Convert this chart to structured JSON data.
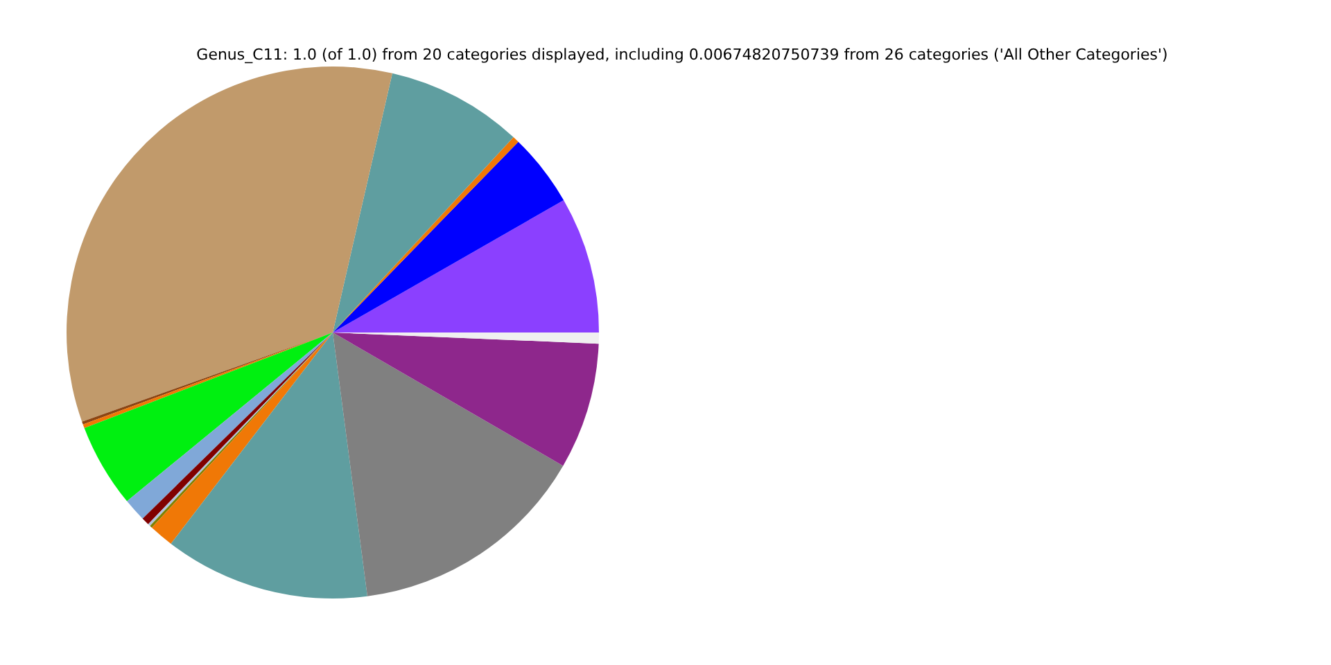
{
  "chart_data": {
    "type": "pie",
    "title": "Genus_C11: 1.0 (of 1.0) from 20 categories displayed, including 0.00674820750739 from 26 categories ('All Other Categories')",
    "categories": [
      null,
      null,
      null,
      null,
      null,
      null,
      null,
      null,
      null,
      null,
      null,
      null,
      null,
      null,
      null,
      null,
      null
    ],
    "values": [
      8.3,
      4.45,
      0.4,
      8.3,
      34.1,
      0.18,
      0.23,
      5.1,
      1.4,
      0.47,
      0.15,
      0.15,
      1.5,
      12.5,
      14.6,
      7.7,
      0.67
    ],
    "colors": [
      "#8b40ff",
      "#0000ff",
      "#f07806",
      "#5f9ea0",
      "#c19a6b",
      "#8b4513",
      "#f07806",
      "#00f010",
      "#80a8d8",
      "#800000",
      "#b0c4de",
      "#808000",
      "#f07806",
      "#5f9ea0",
      "#808080",
      "#8e278c",
      "#f0f0f0"
    ]
  }
}
